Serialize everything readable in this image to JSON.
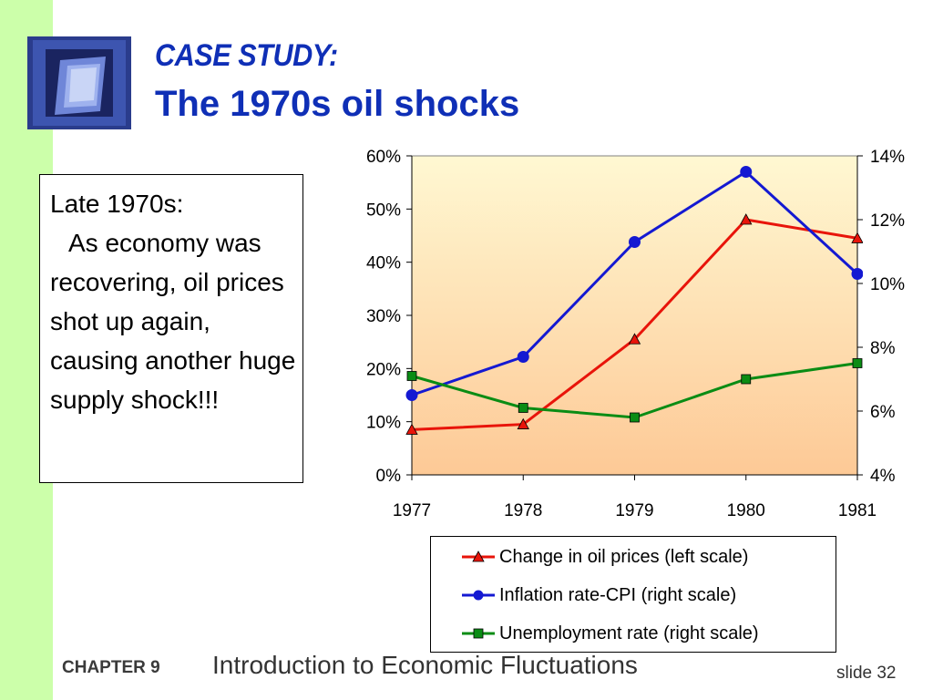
{
  "title": {
    "line1": "CASE STUDY:",
    "line2": "The 1970s oil shocks"
  },
  "text_box": {
    "heading": "Late 1970s:",
    "body": "As economy was recovering, oil prices shot up again, causing another huge supply shock!!!"
  },
  "footer": {
    "chapter_label": "CHAPTER 9",
    "subject": "Introduction to Economic Fluctuations",
    "slide_number": "slide 32"
  },
  "colors": {
    "strip": "#ccffaa",
    "title": "#0f2fb6",
    "oil": "#e8140a",
    "inflation": "#1419d2",
    "unemployment": "#0a8c14"
  },
  "chart_data": {
    "type": "line",
    "x": [
      "1977",
      "1978",
      "1979",
      "1980",
      "1981"
    ],
    "left_axis": {
      "ylim": [
        0,
        60
      ],
      "ticks": [
        "0%",
        "10%",
        "20%",
        "30%",
        "40%",
        "50%",
        "60%"
      ]
    },
    "right_axis": {
      "ylim": [
        4,
        14
      ],
      "ticks": [
        "4%",
        "6%",
        "8%",
        "10%",
        "12%",
        "14%"
      ]
    },
    "series": [
      {
        "name": "Change in oil prices (left scale)",
        "axis": "left",
        "marker": "triangle",
        "values": [
          8.5,
          9.5,
          25.5,
          48,
          44.5
        ]
      },
      {
        "name": "Inflation rate-CPI (right scale)",
        "axis": "right",
        "marker": "circle",
        "values": [
          6.5,
          7.7,
          11.3,
          13.5,
          10.3
        ]
      },
      {
        "name": "Unemployment rate (right scale)",
        "axis": "right",
        "marker": "square",
        "values": [
          7.1,
          6.1,
          5.8,
          7.0,
          7.5
        ]
      }
    ],
    "grid": false,
    "legend": "bottom"
  }
}
